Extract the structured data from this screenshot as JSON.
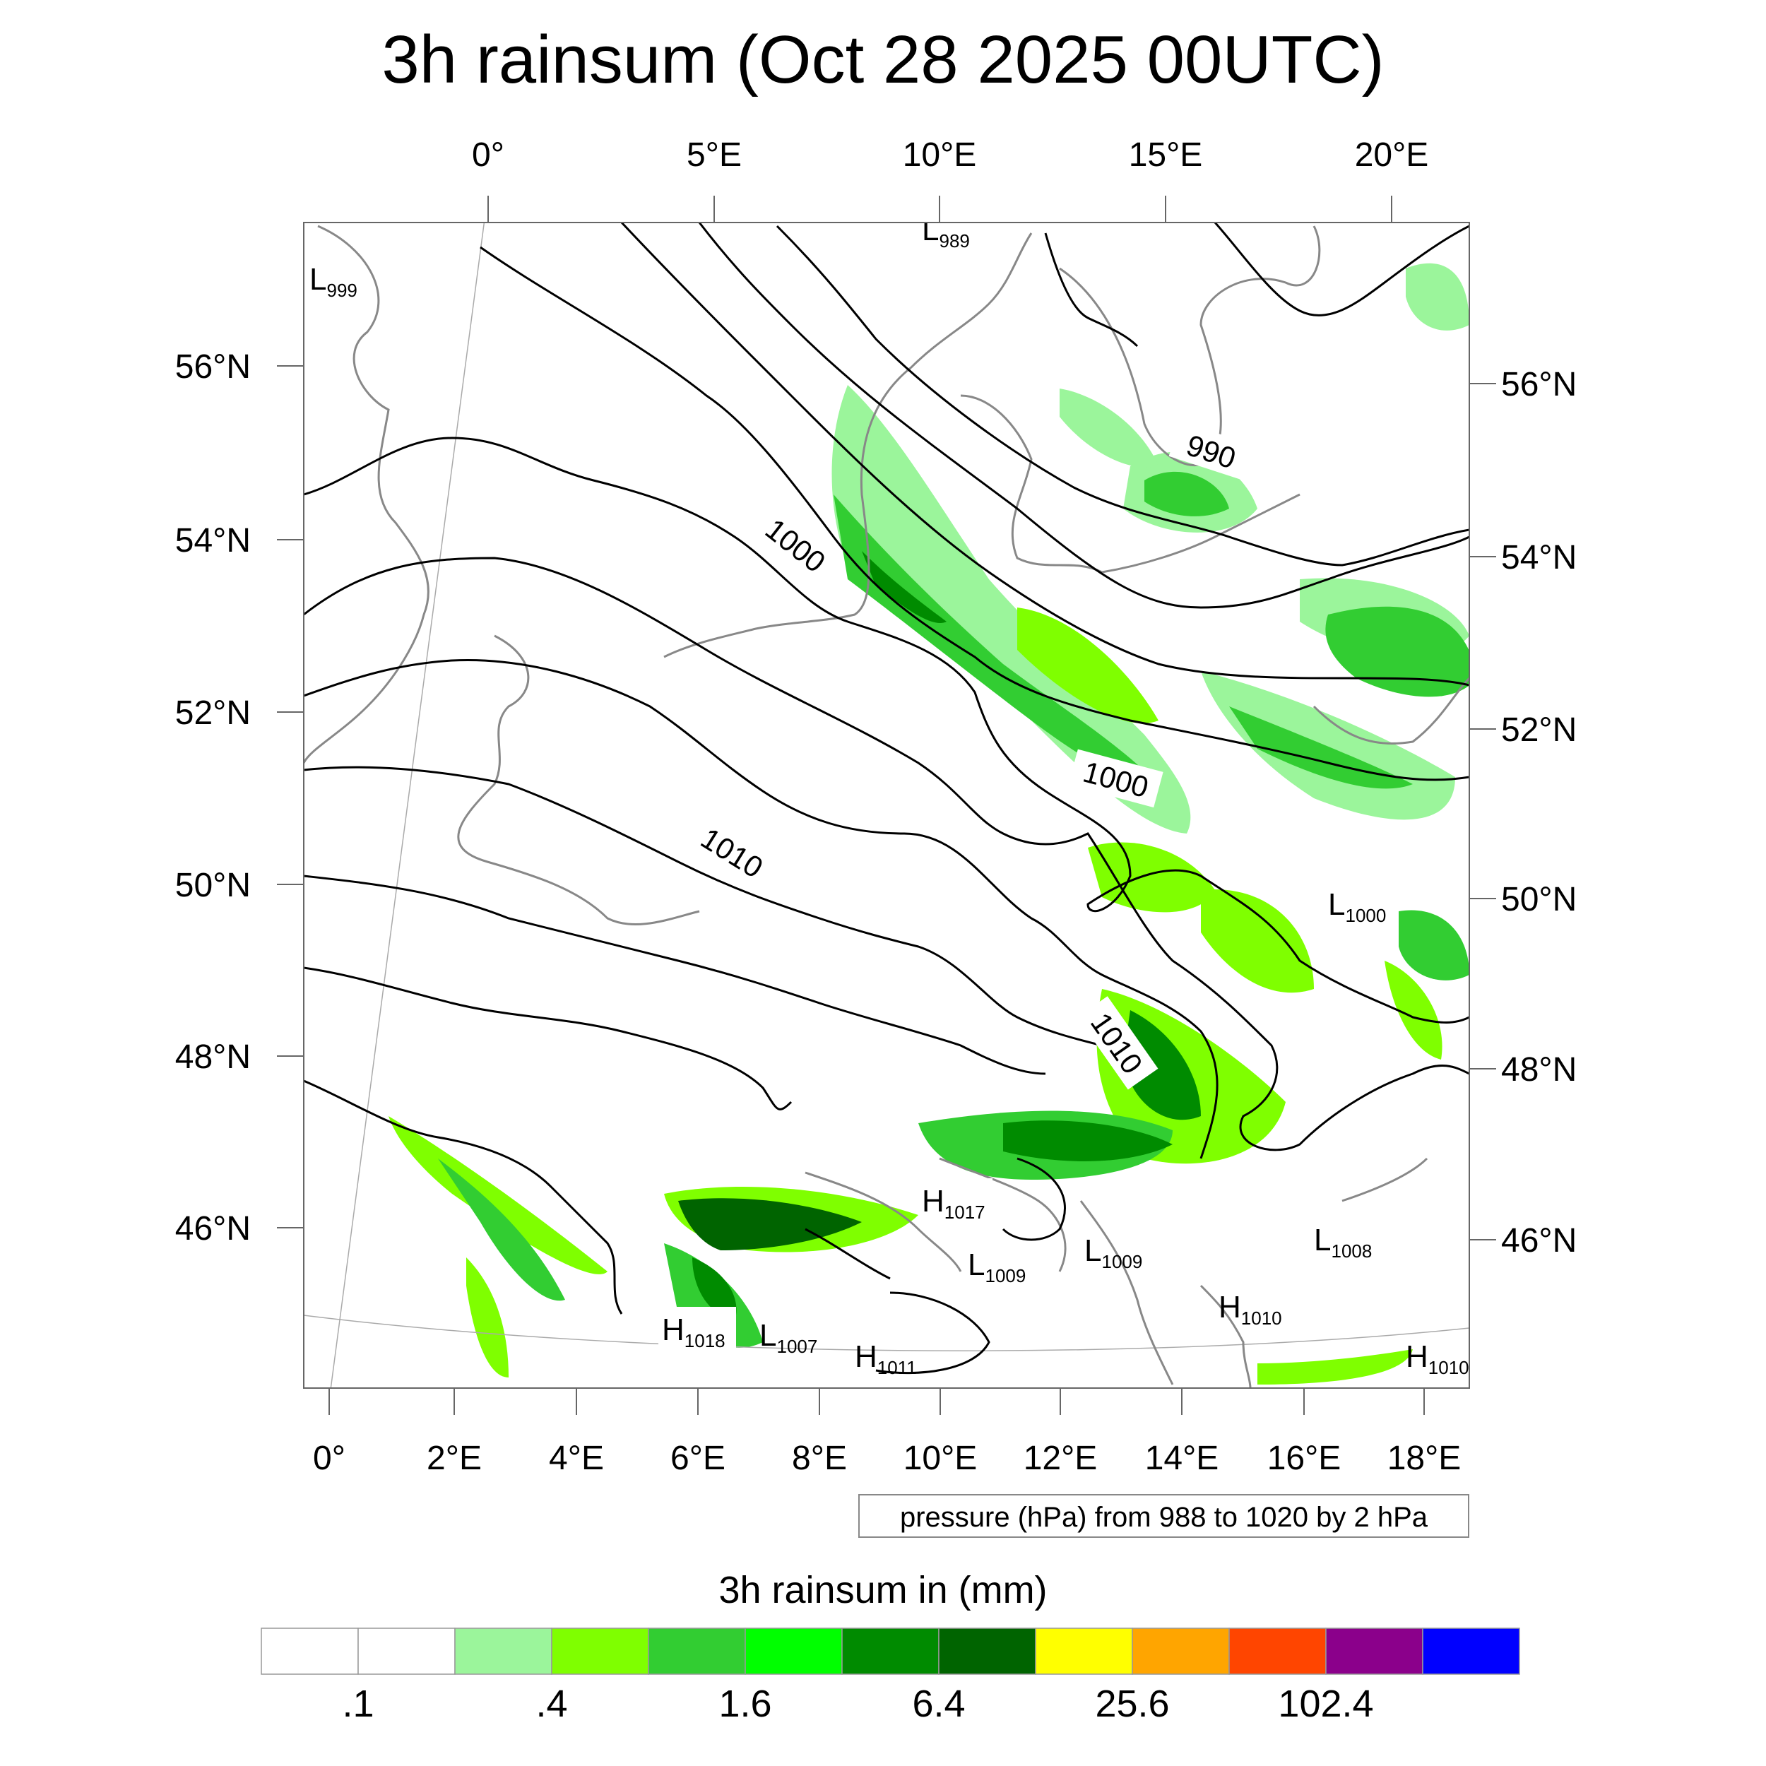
{
  "title": "3h rainsum (Oct 28 2025 00UTC)",
  "top_lon_labels": [
    "0°",
    "5°E",
    "10°E",
    "15°E",
    "20°E"
  ],
  "bottom_lon_labels": [
    "0°",
    "2°E",
    "4°E",
    "6°E",
    "8°E",
    "10°E",
    "12°E",
    "14°E",
    "16°E",
    "18°E"
  ],
  "left_lat_labels": [
    "56°N",
    "54°N",
    "52°N",
    "50°N",
    "48°N",
    "46°N"
  ],
  "right_lat_labels": [
    "56°N",
    "54°N",
    "52°N",
    "50°N",
    "48°N",
    "46°N"
  ],
  "contour_labels": [
    "990",
    "1000",
    "1000",
    "1010",
    "1010"
  ],
  "pressure_centers": [
    {
      "kind": "L",
      "value": "999"
    },
    {
      "kind": "L",
      "value": "989"
    },
    {
      "kind": "L",
      "value": "1000"
    },
    {
      "kind": "H",
      "value": "1017"
    },
    {
      "kind": "L",
      "value": "1009"
    },
    {
      "kind": "L",
      "value": "1009"
    },
    {
      "kind": "L",
      "value": "1008"
    },
    {
      "kind": "H",
      "value": "1018"
    },
    {
      "kind": "L",
      "value": "1007"
    },
    {
      "kind": "H",
      "value": "1011"
    },
    {
      "kind": "H",
      "value": "1010"
    },
    {
      "kind": "H",
      "value": "1010"
    }
  ],
  "info_box": "pressure (hPa) from 988 to 1020 by 2 hPa",
  "legend": {
    "title": "3h rainsum in (mm)",
    "colors": [
      "#ffffff",
      "#ffffff",
      "#9bf59b",
      "#7fff00",
      "#32cd32",
      "#00ff00",
      "#008b00",
      "#006400",
      "#ffff00",
      "#ffa500",
      "#ff4500",
      "#8b008b",
      "#0000ff"
    ],
    "tick_labels": [
      ".1",
      ".4",
      "1.6",
      "6.4",
      "25.6",
      "102.4"
    ]
  }
}
